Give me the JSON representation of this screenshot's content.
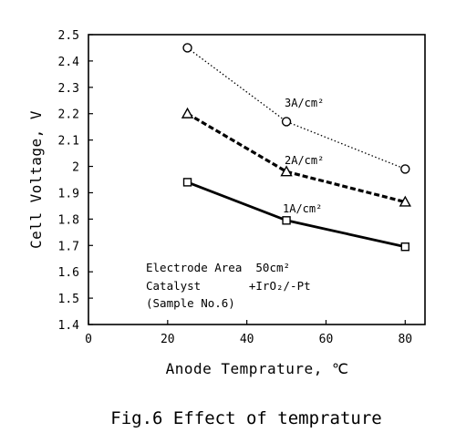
{
  "chart_data": {
    "type": "line",
    "xlabel": "Anode Temprature, ℃",
    "ylabel": "Cell Voltage, V",
    "xlim": [
      0,
      85
    ],
    "ylim": [
      1.4,
      2.5
    ],
    "xticks": [
      0,
      20,
      40,
      60,
      80
    ],
    "xtick_labels": [
      "0",
      "20",
      "40",
      "60",
      "80"
    ],
    "yticks": [
      1.4,
      1.5,
      1.6,
      1.7,
      1.8,
      1.9,
      2.0,
      2.1,
      2.2,
      2.3,
      2.4,
      2.5
    ],
    "ytick_labels": [
      "1.4",
      "1.5",
      "1.6",
      "1.7",
      "1.8",
      "1.9",
      "2",
      "2.1",
      "2.2",
      "2.3",
      "2.4",
      "2.5"
    ],
    "grid": false,
    "series": [
      {
        "name": "3A/cm²",
        "marker": "circle",
        "line": "dotted",
        "x": [
          25,
          50,
          80
        ],
        "y": [
          2.45,
          2.17,
          1.99
        ]
      },
      {
        "name": "2A/cm²",
        "marker": "triangle",
        "line": "dashed",
        "x": [
          25,
          50,
          80
        ],
        "y": [
          2.2,
          1.98,
          1.865
        ]
      },
      {
        "name": "1A/cm²",
        "marker": "square",
        "line": "solid",
        "x": [
          25,
          50,
          80
        ],
        "y": [
          1.94,
          1.795,
          1.695
        ]
      }
    ],
    "annotations": [
      "Electrode Area  50cm²",
      "Catalyst       +IrO₂/-Pt",
      "(Sample No.6)"
    ],
    "caption": "Fig.6 Effect of temprature"
  }
}
